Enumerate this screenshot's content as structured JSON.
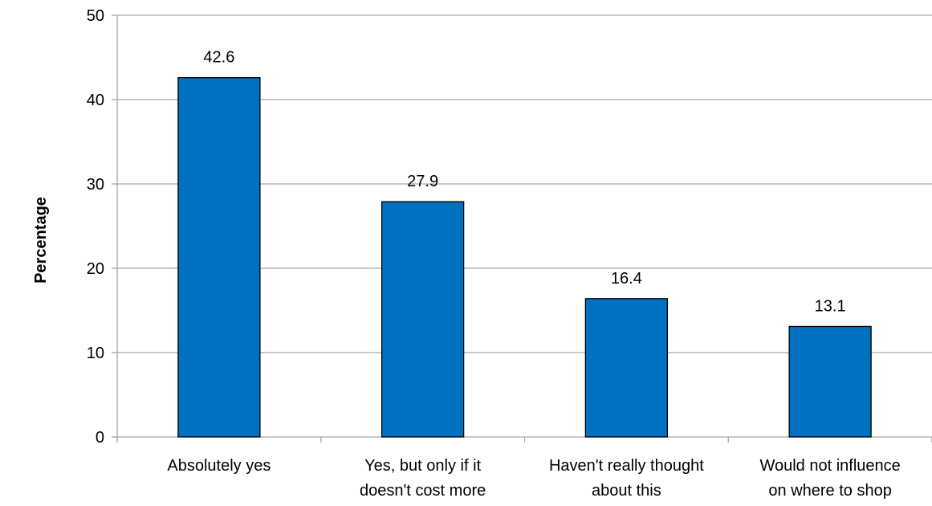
{
  "chart_data": {
    "type": "bar",
    "title": "",
    "xlabel": "",
    "ylabel": "Percentage",
    "ylim": [
      0,
      50
    ],
    "yticks": [
      0,
      10,
      20,
      30,
      40,
      50
    ],
    "grid": true,
    "legend": "none",
    "categories": [
      [
        "Absolutely yes"
      ],
      [
        "Yes, but only if it",
        "doesn't cost more"
      ],
      [
        "Haven't really thought",
        "about this"
      ],
      [
        "Would not influence",
        "on where to shop"
      ]
    ],
    "values": [
      42.6,
      27.9,
      16.4,
      13.1
    ],
    "data_labels": [
      "42.6",
      "27.9",
      "16.4",
      "13.1"
    ],
    "colors": {
      "bar_fill": "#0070C0",
      "bar_stroke": "#000000",
      "grid": "#A6A6A6",
      "axis": "#A6A6A6"
    }
  }
}
